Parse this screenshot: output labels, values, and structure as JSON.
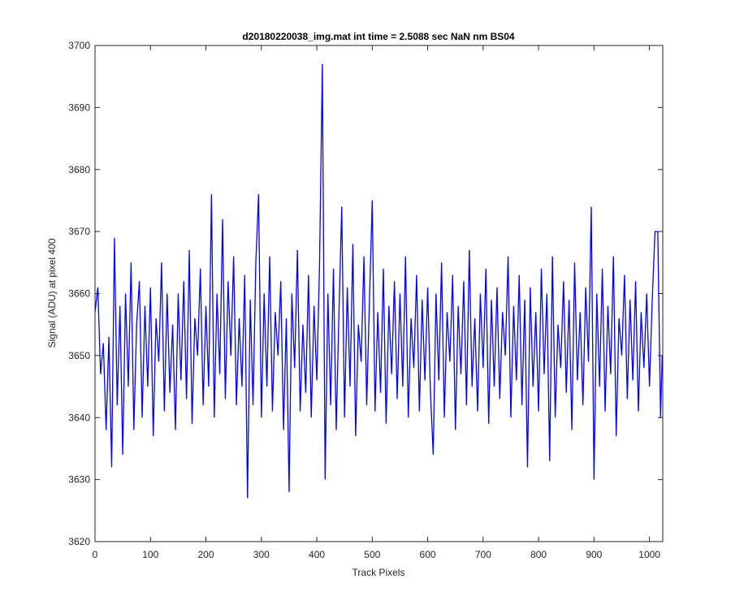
{
  "chart_data": {
    "type": "line",
    "title": "d20180220038_img.mat int time = 2.5088 sec  NaN nm BS04",
    "xlabel": "Track Pixels",
    "ylabel": "Signal (ADU) at pixel 400",
    "xlim": [
      0,
      1024
    ],
    "ylim": [
      3620,
      3700
    ],
    "xticks": [
      0,
      100,
      200,
      300,
      400,
      500,
      600,
      700,
      800,
      900,
      1000
    ],
    "yticks": [
      3620,
      3630,
      3640,
      3650,
      3660,
      3670,
      3680,
      3690,
      3700
    ],
    "grid": false,
    "x": [
      0,
      5,
      10,
      15,
      20,
      25,
      30,
      35,
      40,
      45,
      50,
      55,
      60,
      65,
      70,
      75,
      80,
      85,
      90,
      95,
      100,
      105,
      110,
      115,
      120,
      125,
      130,
      135,
      140,
      145,
      150,
      155,
      160,
      165,
      170,
      175,
      180,
      185,
      190,
      195,
      200,
      205,
      210,
      215,
      220,
      225,
      230,
      235,
      240,
      245,
      250,
      255,
      260,
      265,
      270,
      275,
      280,
      285,
      290,
      295,
      300,
      305,
      310,
      315,
      320,
      325,
      330,
      335,
      340,
      345,
      350,
      355,
      360,
      365,
      370,
      375,
      380,
      385,
      390,
      395,
      400,
      405,
      410,
      415,
      420,
      425,
      430,
      435,
      440,
      445,
      450,
      455,
      460,
      465,
      470,
      475,
      480,
      485,
      490,
      495,
      500,
      505,
      510,
      515,
      520,
      525,
      530,
      535,
      540,
      545,
      550,
      555,
      560,
      565,
      570,
      575,
      580,
      585,
      590,
      595,
      600,
      605,
      610,
      615,
      620,
      625,
      630,
      635,
      640,
      645,
      650,
      655,
      660,
      665,
      670,
      675,
      680,
      685,
      690,
      695,
      700,
      705,
      710,
      715,
      720,
      725,
      730,
      735,
      740,
      745,
      750,
      755,
      760,
      765,
      770,
      775,
      780,
      785,
      790,
      795,
      800,
      805,
      810,
      815,
      820,
      825,
      830,
      835,
      840,
      845,
      850,
      855,
      860,
      865,
      870,
      875,
      880,
      885,
      890,
      895,
      900,
      905,
      910,
      915,
      920,
      925,
      930,
      935,
      940,
      945,
      950,
      955,
      960,
      965,
      970,
      975,
      980,
      985,
      990,
      995,
      1000,
      1005,
      1010,
      1015,
      1020,
      1023
    ],
    "series": [
      {
        "color": "#0000ff",
        "values": [
          3657,
          3661,
          3647,
          3652,
          3638,
          3653,
          3632,
          3669,
          3642,
          3658,
          3634,
          3660,
          3645,
          3665,
          3638,
          3655,
          3662,
          3640,
          3658,
          3645,
          3661,
          3637,
          3656,
          3649,
          3665,
          3641,
          3660,
          3644,
          3655,
          3638,
          3660,
          3646,
          3662,
          3643,
          3667,
          3639,
          3656,
          3650,
          3664,
          3642,
          3658,
          3645,
          3676,
          3640,
          3660,
          3647,
          3672,
          3643,
          3662,
          3650,
          3666,
          3642,
          3656,
          3645,
          3663,
          3627,
          3659,
          3642,
          3665,
          3676,
          3640,
          3660,
          3645,
          3666,
          3641,
          3657,
          3650,
          3662,
          3638,
          3656,
          3628,
          3660,
          3648,
          3667,
          3641,
          3655,
          3644,
          3663,
          3640,
          3658,
          3646,
          3665,
          3697,
          3630,
          3660,
          3642,
          3664,
          3638,
          3657,
          3674,
          3640,
          3661,
          3645,
          3668,
          3637,
          3655,
          3649,
          3666,
          3642,
          3659,
          3675,
          3641,
          3657,
          3644,
          3664,
          3639,
          3658,
          3647,
          3662,
          3643,
          3660,
          3645,
          3666,
          3640,
          3656,
          3648,
          3663,
          3641,
          3659,
          3646,
          3661,
          3644,
          3634,
          3660,
          3646,
          3665,
          3640,
          3657,
          3649,
          3663,
          3638,
          3658,
          3647,
          3662,
          3642,
          3667,
          3645,
          3656,
          3641,
          3660,
          3648,
          3664,
          3639,
          3659,
          3645,
          3661,
          3643,
          3657,
          3650,
          3666,
          3640,
          3658,
          3646,
          3663,
          3642,
          3659,
          3632,
          3661,
          3645,
          3657,
          3641,
          3664,
          3647,
          3660,
          3633,
          3666,
          3640,
          3655,
          3648,
          3662,
          3644,
          3659,
          3638,
          3665,
          3646,
          3657,
          3642,
          3661,
          3649,
          3674,
          3630,
          3660,
          3645,
          3664,
          3641,
          3658,
          3647,
          3666,
          3637,
          3656,
          3650,
          3663,
          3643,
          3659,
          3646,
          3662,
          3641,
          3657,
          3648,
          3660,
          3645,
          3659,
          3670,
          3670,
          3640,
          3650
        ]
      }
    ]
  }
}
